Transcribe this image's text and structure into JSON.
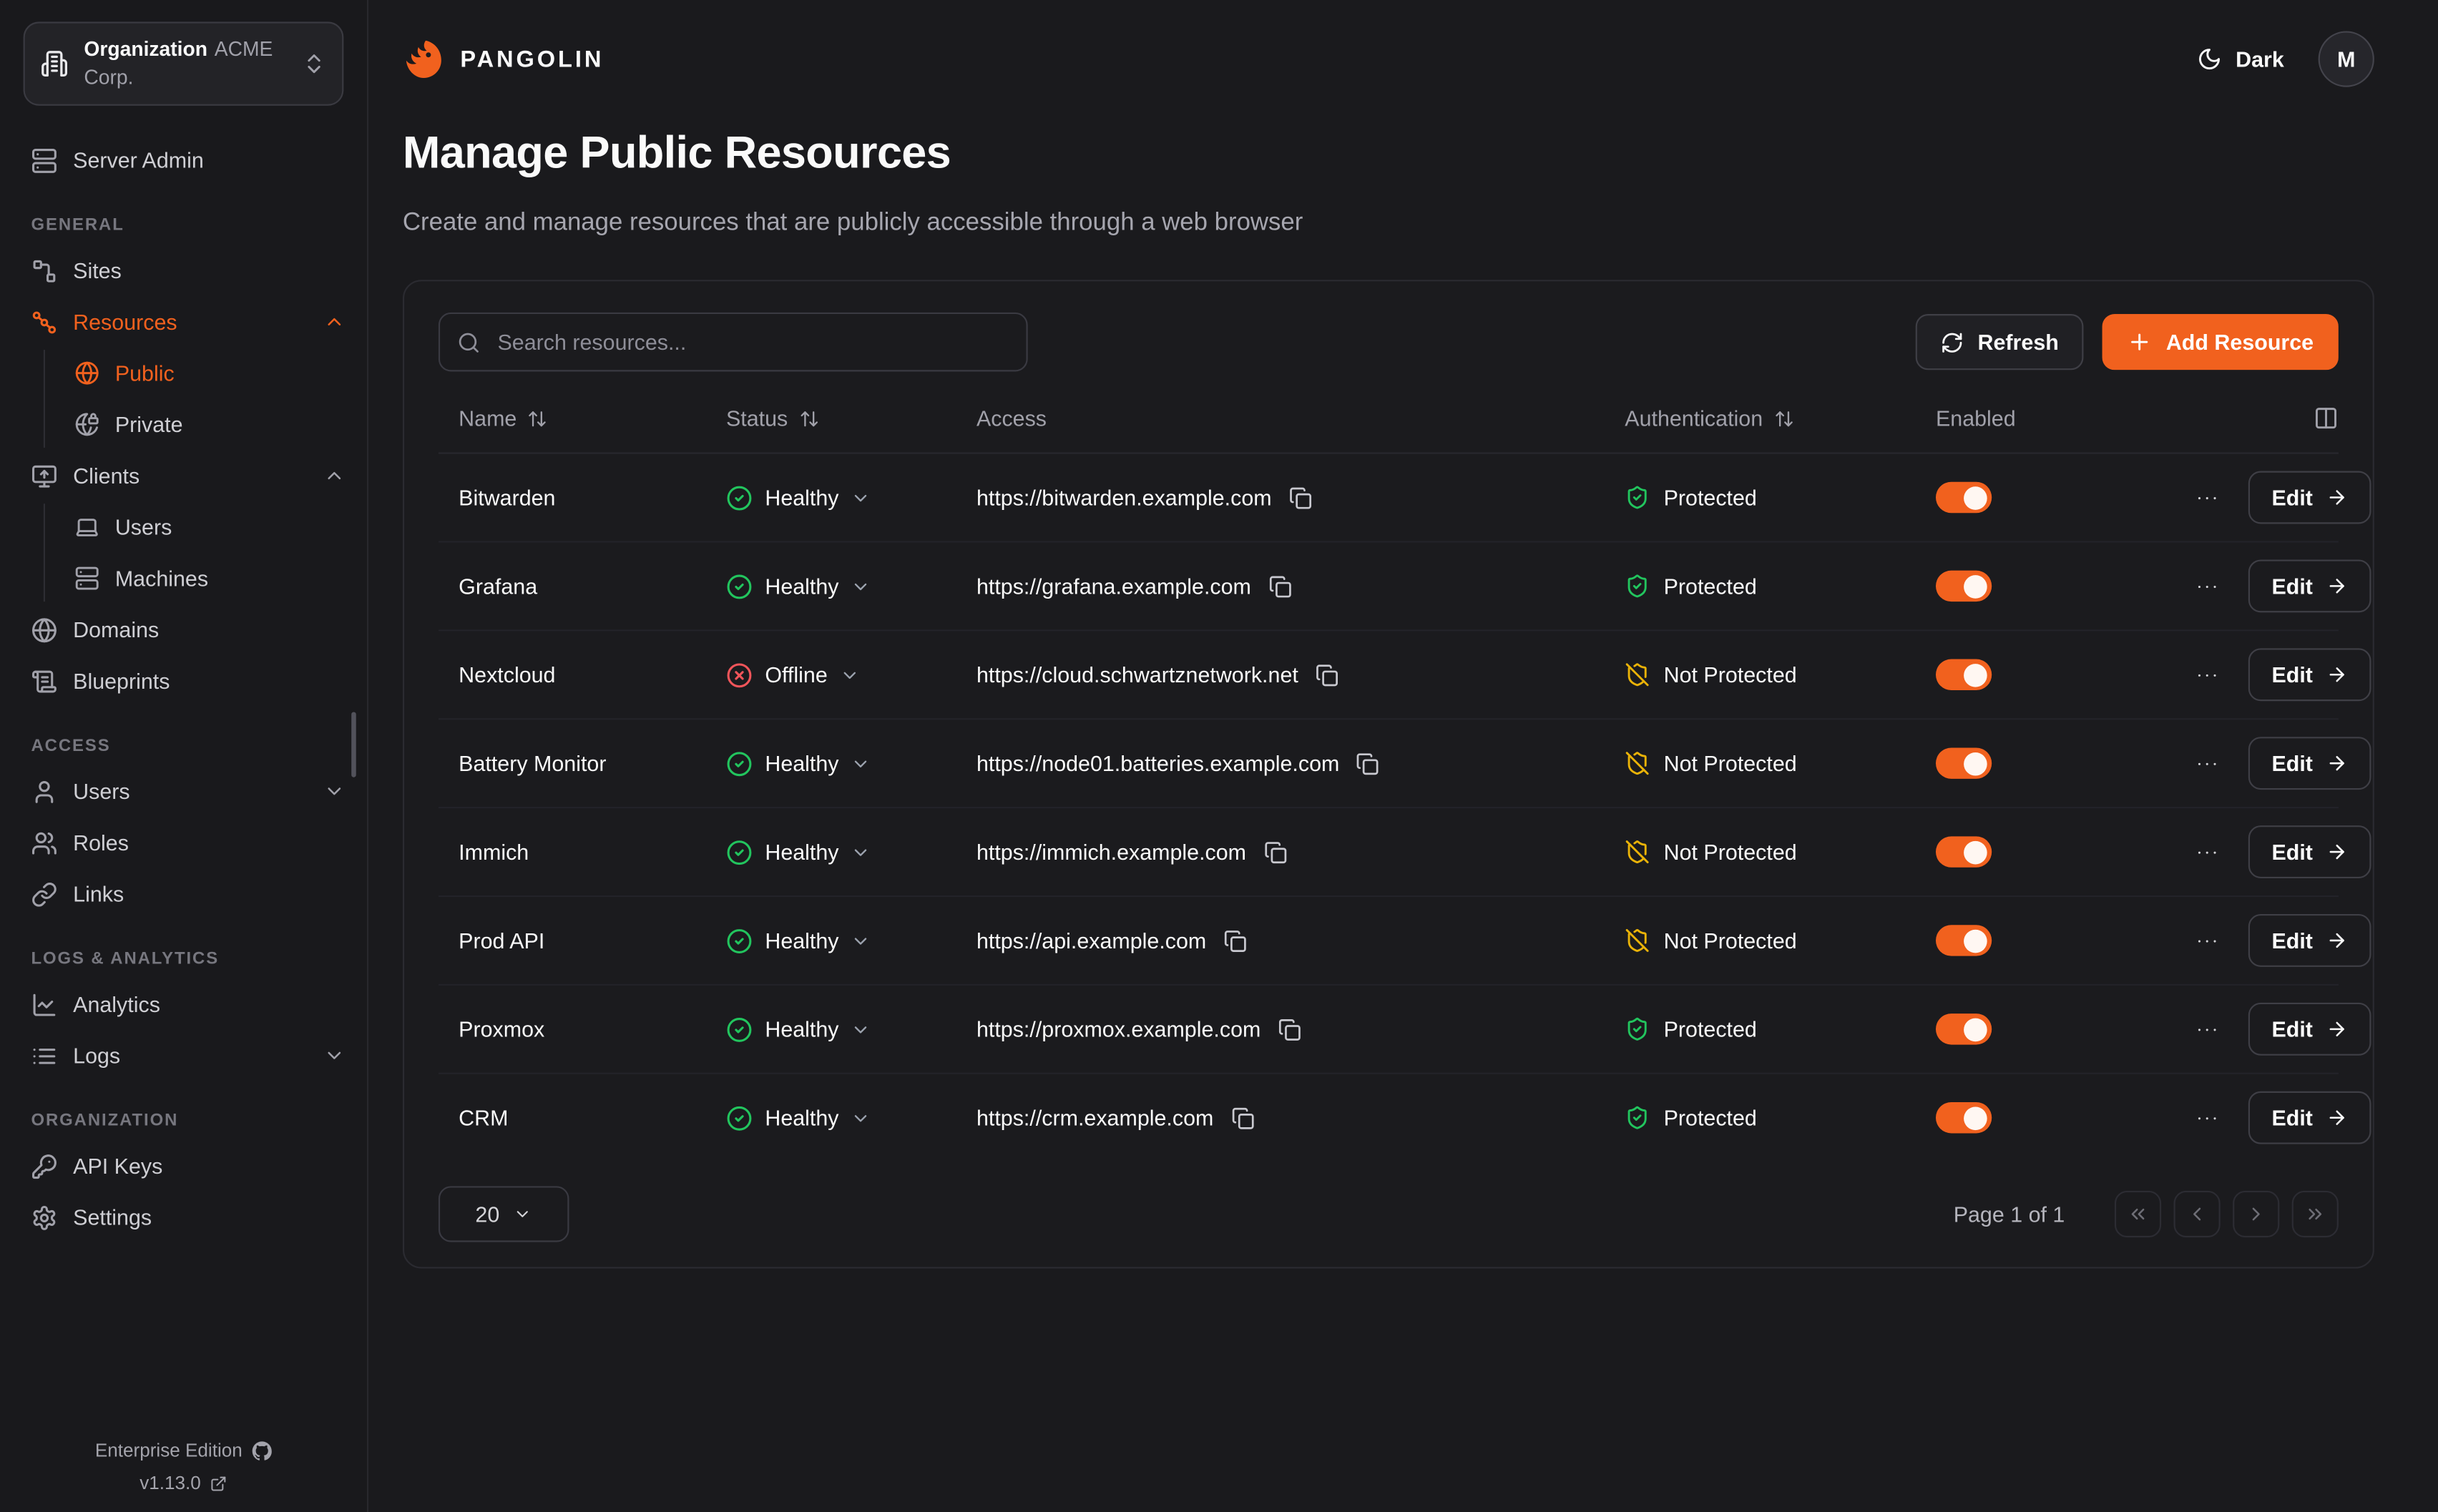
{
  "theme": {
    "accent": "#F1611E",
    "healthy_green": "#22C55E",
    "offline_red": "#F2555A",
    "warn_amber": "#EAB308",
    "background": "#1A1A1D"
  },
  "sidebar": {
    "org_selector": {
      "label": "Organization",
      "value": "ACME Corp.",
      "icon": "building-icon"
    },
    "server_admin": "Server Admin",
    "sections": [
      {
        "label": "GENERAL",
        "items": [
          {
            "id": "sites",
            "icon": "workflow",
            "label": "Sites"
          },
          {
            "id": "resources",
            "icon": "waypoints",
            "label": "Resources",
            "active": true,
            "chevron": "up",
            "children": [
              {
                "id": "public",
                "icon": "globe",
                "label": "Public",
                "active": true
              },
              {
                "id": "private",
                "icon": "globe-lock",
                "label": "Private"
              }
            ]
          },
          {
            "id": "clients",
            "icon": "monitor-up",
            "label": "Clients",
            "chevron": "up",
            "children": [
              {
                "id": "client-users",
                "icon": "laptop",
                "label": "Users"
              },
              {
                "id": "machines",
                "icon": "server",
                "label": "Machines"
              }
            ]
          },
          {
            "id": "domains",
            "icon": "globe",
            "label": "Domains"
          },
          {
            "id": "blueprints",
            "icon": "scroll-text",
            "label": "Blueprints"
          }
        ]
      },
      {
        "label": "ACCESS",
        "items": [
          {
            "id": "users",
            "icon": "user",
            "label": "Users",
            "chevron": "down"
          },
          {
            "id": "roles",
            "icon": "users",
            "label": "Roles"
          },
          {
            "id": "links",
            "icon": "link",
            "label": "Links"
          }
        ]
      },
      {
        "label": "LOGS & ANALYTICS",
        "items": [
          {
            "id": "analytics",
            "icon": "chart-line",
            "label": "Analytics"
          },
          {
            "id": "logs",
            "icon": "list",
            "label": "Logs",
            "chevron": "down"
          }
        ]
      },
      {
        "label": "ORGANIZATION",
        "items": [
          {
            "id": "api-keys",
            "icon": "key",
            "label": "API Keys"
          },
          {
            "id": "settings",
            "icon": "settings",
            "label": "Settings"
          }
        ]
      }
    ],
    "footer": {
      "edition": "Enterprise Edition",
      "version": "v1.13.0"
    }
  },
  "header": {
    "brand": "PANGOLIN",
    "theme_label": "Dark",
    "avatar": "M"
  },
  "page": {
    "title": "Manage Public Resources",
    "subtitle": "Create and manage resources that are publicly accessible through a web browser"
  },
  "toolbar": {
    "search_placeholder": "Search resources...",
    "refresh": "Refresh",
    "add": "Add Resource"
  },
  "table": {
    "columns": [
      {
        "label": "Name",
        "sortable": true
      },
      {
        "label": "Status",
        "sortable": true
      },
      {
        "label": "Access",
        "sortable": false
      },
      {
        "label": "Authentication",
        "sortable": true
      },
      {
        "label": "Enabled",
        "sortable": false
      }
    ],
    "edit_label": "Edit",
    "rows": [
      {
        "name": "Bitwarden",
        "status": "Healthy",
        "url": "https://bitwarden.example.com",
        "auth": "Protected",
        "enabled": true
      },
      {
        "name": "Grafana",
        "status": "Healthy",
        "url": "https://grafana.example.com",
        "auth": "Protected",
        "enabled": true
      },
      {
        "name": "Nextcloud",
        "status": "Offline",
        "url": "https://cloud.schwartznetwork.net",
        "auth": "Not Protected",
        "enabled": true
      },
      {
        "name": "Battery Monitor",
        "status": "Healthy",
        "url": "https://node01.batteries.example.com",
        "auth": "Not Protected",
        "enabled": true
      },
      {
        "name": "Immich",
        "status": "Healthy",
        "url": "https://immich.example.com",
        "auth": "Not Protected",
        "enabled": true
      },
      {
        "name": "Prod API",
        "status": "Healthy",
        "url": "https://api.example.com",
        "auth": "Not Protected",
        "enabled": true
      },
      {
        "name": "Proxmox",
        "status": "Healthy",
        "url": "https://proxmox.example.com",
        "auth": "Protected",
        "enabled": true
      },
      {
        "name": "CRM",
        "status": "Healthy",
        "url": "https://crm.example.com",
        "auth": "Protected",
        "enabled": true
      }
    ]
  },
  "pagination": {
    "page_size": "20",
    "label": "Page 1 of 1"
  }
}
